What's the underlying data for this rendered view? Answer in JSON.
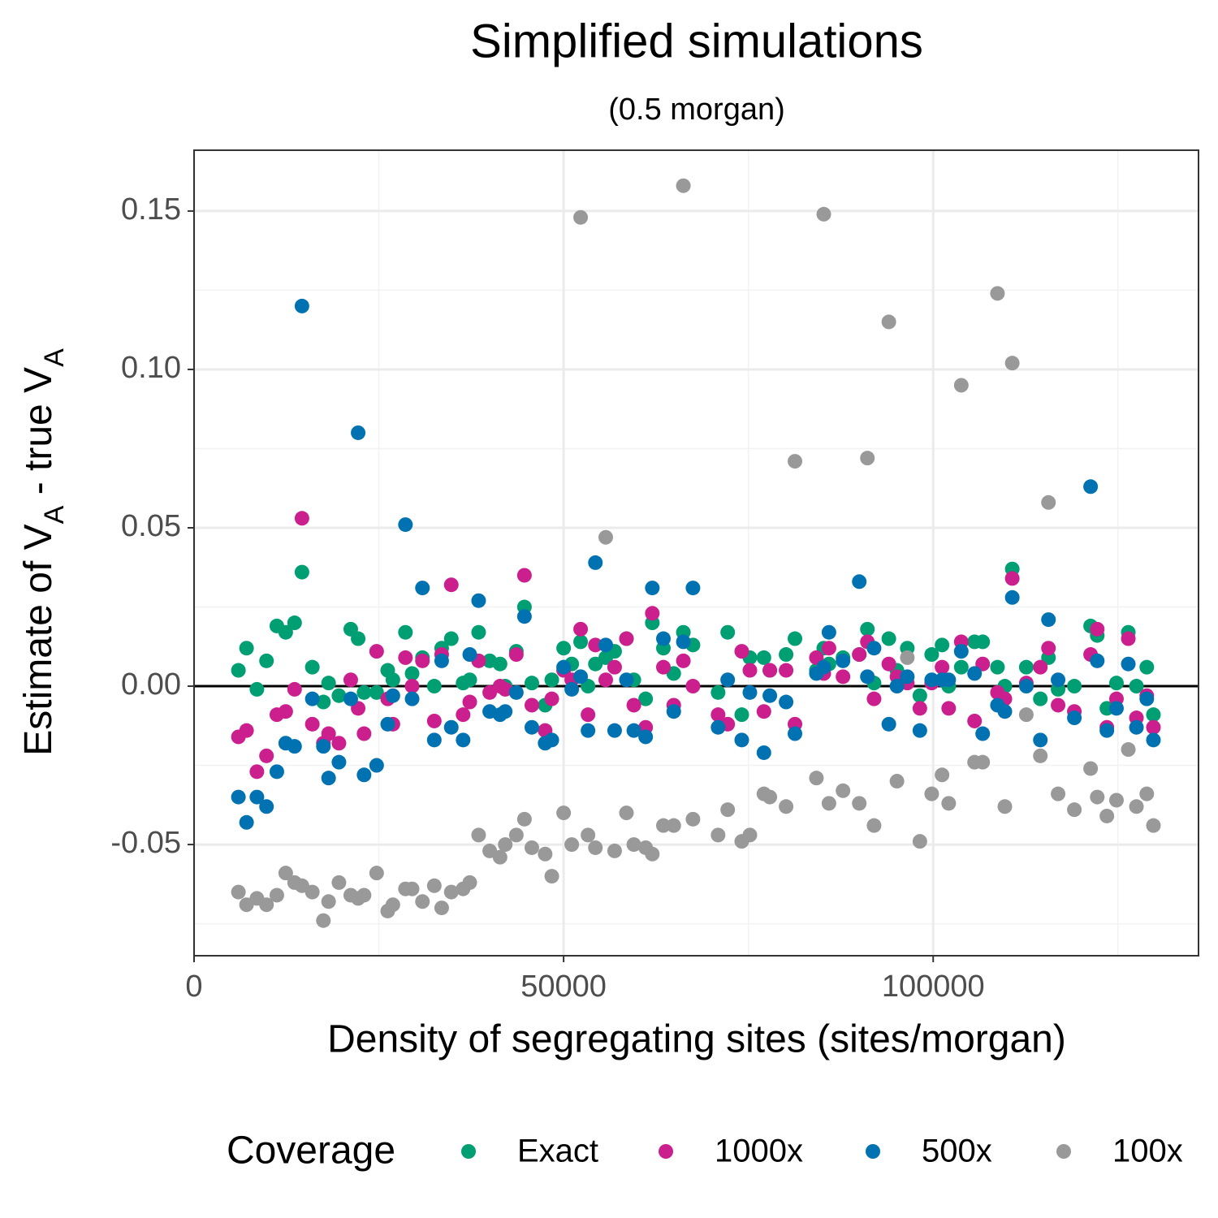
{
  "chart_data": {
    "type": "scatter",
    "title": "Simplified simulations",
    "subtitle": "(0.5 morgan)",
    "x_label": "Density of segregating sites (sites/morgan)",
    "y_label": [
      {
        "text": "Estimate of V",
        "sub": "A"
      },
      {
        "text": " - true V",
        "sub": "A"
      }
    ],
    "legend_title": "Coverage",
    "legend_position": "bottom",
    "grid": true,
    "hline": 0,
    "xlim": [
      0,
      135900
    ],
    "ylim": [
      -0.0851,
      0.1692
    ],
    "xticks": [
      0,
      50000,
      100000
    ],
    "yticks": [
      {
        "value": -0.05,
        "label": "-0.05"
      },
      {
        "value": 0,
        "label": "0.00"
      },
      0.05,
      {
        "value": 0.1,
        "label": "0.10"
      },
      0.15
    ],
    "x_minor_grid": [
      25000,
      75000,
      125000
    ],
    "y_minor_grid": [
      -0.075,
      -0.025,
      0.025,
      0.075,
      0.125
    ],
    "x": [
      6000,
      7100,
      8500,
      9800,
      11200,
      12400,
      13600,
      14600,
      16000,
      17500,
      18200,
      19600,
      21200,
      22200,
      23000,
      24700,
      26200,
      26900,
      28600,
      29500,
      30900,
      32500,
      33500,
      34800,
      36400,
      37300,
      38500,
      40000,
      41400,
      42100,
      43600,
      44700,
      45700,
      47500,
      48400,
      50000,
      51100,
      52300,
      53300,
      54300,
      55700,
      56900,
      58500,
      59500,
      61100,
      62000,
      63500,
      64900,
      66200,
      67500,
      70900,
      72200,
      74100,
      75200,
      77100,
      77900,
      80100,
      81300,
      84200,
      85200,
      85900,
      87800,
      90000,
      91100,
      92000,
      94000,
      95100,
      96500,
      98200,
      99800,
      101200,
      102100,
      103800,
      105600,
      106700,
      108700,
      109700,
      110700,
      112600,
      114500,
      115600,
      116900,
      119100,
      121300,
      122200,
      123500,
      124800,
      126400,
      127500,
      128900,
      129800
    ],
    "series": [
      {
        "name": "Exact",
        "color": "#009e73",
        "values": [
          0.005,
          0.012,
          -0.001,
          0.008,
          0.019,
          0.017,
          0.02,
          0.036,
          0.006,
          -0.005,
          0.001,
          -0.003,
          0.018,
          0.015,
          -0.002,
          -0.002,
          0.005,
          0.002,
          0.017,
          0.004,
          0.009,
          0.0,
          0.012,
          0.015,
          0.001,
          0.002,
          0.017,
          0.008,
          0.007,
          0.0,
          0.011,
          0.025,
          0.001,
          -0.006,
          0.002,
          0.012,
          0.007,
          0.014,
          0.0,
          0.007,
          0.009,
          0.011,
          0.015,
          0.002,
          -0.004,
          0.02,
          0.012,
          0.004,
          0.017,
          0.013,
          -0.002,
          0.017,
          -0.009,
          0.009,
          0.009,
          0.005,
          0.01,
          0.015,
          0.005,
          0.012,
          0.007,
          0.009,
          0.01,
          0.018,
          0.001,
          0.015,
          0.005,
          0.012,
          -0.003,
          0.01,
          0.013,
          0.0,
          0.006,
          0.014,
          0.014,
          0.006,
          0.0,
          0.037,
          0.006,
          -0.004,
          0.009,
          -0.001,
          0.0,
          0.019,
          0.016,
          -0.007,
          0.001,
          0.017,
          0.0,
          0.006,
          -0.009
        ]
      },
      {
        "name": "1000x",
        "color": "#cc1f8e",
        "values": [
          -0.016,
          -0.014,
          -0.027,
          -0.022,
          -0.009,
          -0.008,
          -0.001,
          0.053,
          -0.012,
          -0.018,
          -0.015,
          -0.018,
          0.002,
          -0.007,
          -0.015,
          0.011,
          -0.004,
          -0.012,
          0.009,
          0.0,
          0.008,
          -0.011,
          0.01,
          0.032,
          -0.009,
          -0.005,
          0.008,
          -0.002,
          0.0,
          -0.001,
          0.01,
          0.035,
          -0.006,
          -0.014,
          -0.004,
          0.005,
          0.002,
          0.018,
          -0.009,
          0.013,
          0.002,
          0.006,
          0.015,
          -0.006,
          -0.013,
          0.023,
          0.006,
          -0.006,
          0.008,
          0.0,
          -0.009,
          -0.012,
          0.011,
          0.005,
          -0.008,
          0.005,
          0.005,
          -0.012,
          0.009,
          0.004,
          0.012,
          0.003,
          0.01,
          0.014,
          -0.004,
          0.007,
          0.003,
          0.001,
          -0.007,
          0.001,
          0.006,
          -0.007,
          0.014,
          -0.011,
          0.007,
          -0.002,
          -0.004,
          0.034,
          0.001,
          0.006,
          0.012,
          -0.006,
          -0.008,
          0.01,
          0.018,
          -0.013,
          -0.004,
          0.015,
          -0.01,
          -0.003,
          -0.013
        ]
      },
      {
        "name": "500x",
        "color": "#0072b2",
        "values": [
          -0.035,
          -0.043,
          -0.035,
          -0.038,
          -0.027,
          -0.018,
          -0.019,
          0.12,
          -0.004,
          -0.019,
          -0.029,
          -0.024,
          -0.004,
          0.08,
          -0.028,
          -0.025,
          -0.012,
          -0.003,
          0.051,
          -0.004,
          0.031,
          -0.017,
          0.008,
          -0.013,
          -0.017,
          0.01,
          0.027,
          -0.008,
          -0.009,
          -0.008,
          -0.002,
          0.022,
          -0.013,
          -0.018,
          -0.017,
          0.006,
          -0.001,
          0.003,
          -0.014,
          0.039,
          0.013,
          -0.014,
          0.002,
          -0.014,
          -0.016,
          0.031,
          0.015,
          -0.008,
          0.014,
          0.031,
          -0.013,
          0.002,
          -0.017,
          -0.002,
          -0.021,
          -0.003,
          -0.005,
          -0.015,
          0.004,
          0.006,
          0.017,
          0.008,
          0.033,
          0.003,
          0.012,
          -0.012,
          0.0,
          0.003,
          -0.014,
          0.002,
          0.002,
          0.002,
          0.011,
          0.004,
          -0.015,
          -0.006,
          -0.008,
          0.028,
          0.0,
          -0.017,
          0.021,
          0.002,
          -0.01,
          0.063,
          0.008,
          -0.014,
          -0.007,
          0.007,
          -0.013,
          -0.004,
          -0.017
        ]
      },
      {
        "name": "100x",
        "color": "#999999",
        "values": [
          -0.065,
          -0.069,
          -0.067,
          -0.069,
          -0.066,
          -0.059,
          -0.062,
          -0.063,
          -0.065,
          -0.074,
          -0.068,
          -0.062,
          -0.066,
          -0.067,
          -0.066,
          -0.059,
          -0.071,
          -0.069,
          -0.064,
          -0.064,
          -0.068,
          -0.063,
          -0.07,
          -0.065,
          -0.064,
          -0.062,
          -0.047,
          -0.052,
          -0.054,
          -0.05,
          -0.047,
          -0.042,
          -0.051,
          -0.053,
          -0.06,
          -0.04,
          -0.05,
          0.148,
          -0.047,
          -0.051,
          0.047,
          -0.052,
          -0.04,
          -0.05,
          -0.051,
          -0.053,
          -0.044,
          -0.044,
          0.158,
          -0.042,
          -0.047,
          -0.039,
          -0.049,
          -0.047,
          -0.034,
          -0.035,
          -0.038,
          0.071,
          -0.029,
          0.149,
          -0.037,
          -0.033,
          -0.037,
          0.072,
          -0.044,
          0.115,
          -0.03,
          0.009,
          -0.049,
          -0.034,
          -0.028,
          -0.037,
          0.095,
          -0.024,
          -0.024,
          0.124,
          -0.038,
          0.102,
          -0.009,
          -0.022,
          0.058,
          -0.034,
          -0.039,
          -0.026,
          -0.035,
          -0.041,
          -0.036,
          -0.02,
          -0.038,
          -0.034,
          -0.044
        ]
      }
    ]
  }
}
